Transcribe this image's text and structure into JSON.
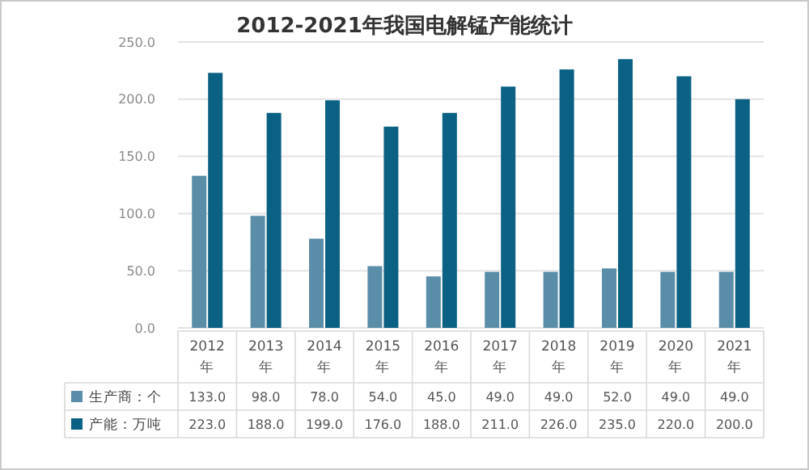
{
  "chart_data": {
    "type": "bar",
    "title": "2012-2021年我国电解锰产能统计",
    "categories": [
      "2012\n年",
      "2013\n年",
      "2014\n年",
      "2015\n年",
      "2016\n年",
      "2017\n年",
      "2018\n年",
      "2019\n年",
      "2020\n年",
      "2021\n年"
    ],
    "series": [
      {
        "name": "生产商：个",
        "color": "#5a8ea8",
        "values": [
          133,
          98,
          78,
          54,
          45,
          49,
          49,
          52,
          49,
          49
        ],
        "value_labels": [
          "133.0",
          "98.0",
          "78.0",
          "54.0",
          "45.0",
          "49.0",
          "49.0",
          "52.0",
          "49.0",
          "49.0"
        ]
      },
      {
        "name": "产能：万吨",
        "color": "#0b6184",
        "values": [
          223,
          188,
          199,
          176,
          188,
          211,
          226,
          235,
          220,
          200
        ],
        "value_labels": [
          "223.0",
          "188.0",
          "199.0",
          "176.0",
          "188.0",
          "211.0",
          "226.0",
          "235.0",
          "220.0",
          "200.0"
        ]
      }
    ],
    "ylim": [
      0,
      250
    ],
    "yticks": [
      {
        "value": 0,
        "label": "0.0"
      },
      {
        "value": 50,
        "label": "50.0"
      },
      {
        "value": 100,
        "label": "100.0"
      },
      {
        "value": 150,
        "label": "150.0"
      },
      {
        "value": 200,
        "label": "200.0"
      },
      {
        "value": 250,
        "label": "250.0"
      }
    ],
    "grid": "y",
    "legend": "bottom"
  }
}
